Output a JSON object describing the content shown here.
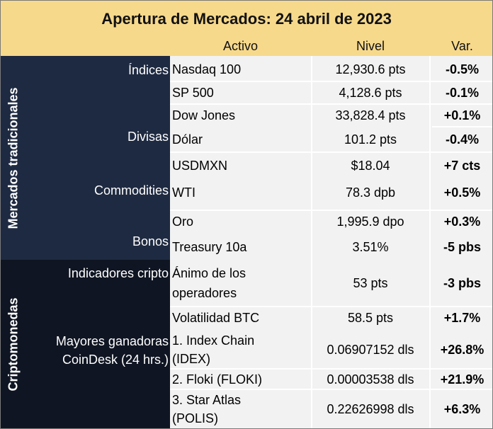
{
  "title": "Apertura de Mercados: 24 abril de 2023",
  "columns": {
    "asset": "Activo",
    "level": "Nivel",
    "change": "Var."
  },
  "sections": {
    "traditional": "Mercados tradicionales",
    "crypto": "Criptomonedas"
  },
  "categories": {
    "indices": "Índices",
    "divisas": "Divisas",
    "commodities": "Commodities",
    "bonos": "Bonos",
    "indicadores": "Indicadores cripto",
    "ganadoras_1": "Mayores ganadoras",
    "ganadoras_2": "CoinDesk (24 hrs.)"
  },
  "rows": [
    {
      "asset": "Nasdaq 100",
      "level": "12,930.6 pts",
      "change": "-0.5%"
    },
    {
      "asset": "SP 500",
      "level": "4,128.6 pts",
      "change": "-0.1%"
    },
    {
      "asset": "Dow Jones",
      "level": "33,828.4 pts",
      "change": "+0.1%"
    },
    {
      "asset": "Dólar",
      "level": "101.2 pts",
      "change": "-0.4%"
    },
    {
      "asset": "USDMXN",
      "level": "$18.04",
      "change": "+7 cts"
    },
    {
      "asset": "WTI",
      "level": "78.3 dpb",
      "change": "+0.5%"
    },
    {
      "asset": "Oro",
      "level": "1,995.9 dpo",
      "change": "+0.3%"
    },
    {
      "asset": "Treasury 10a",
      "level": "3.51%",
      "change": "-5 pbs"
    },
    {
      "asset_1": "Ánimo de los",
      "asset_2": "operadores",
      "level": "53 pts",
      "change": "-3 pbs"
    },
    {
      "asset": "Volatilidad BTC",
      "level": "58.5 pts",
      "change": "+1.7%"
    },
    {
      "asset_1": "1. Index Chain",
      "asset_2": "(IDEX)",
      "level": "0.06907152 dls",
      "change": "+26.8%"
    },
    {
      "asset": "2. Floki (FLOKI)",
      "level": "0.00003538 dls",
      "change": "+21.9%"
    },
    {
      "asset_1": "3. Star Atlas",
      "asset_2": "(POLIS)",
      "level": "0.22626998 dls",
      "change": "+6.3%"
    }
  ]
}
